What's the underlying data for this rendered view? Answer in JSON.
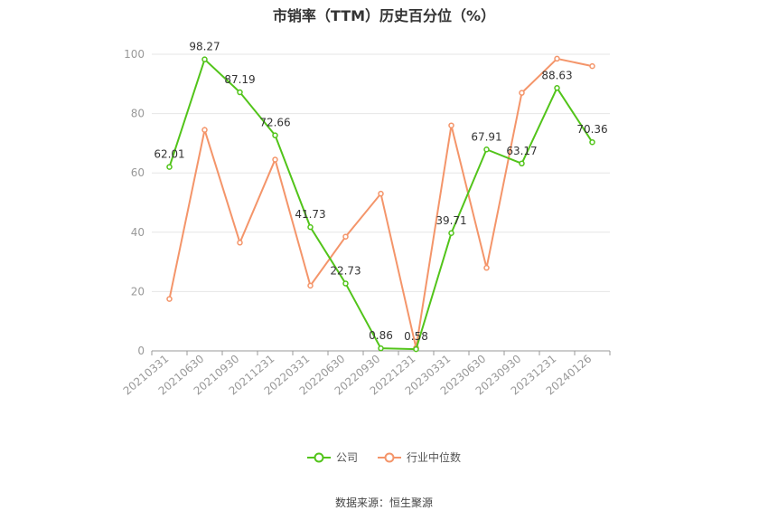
{
  "chart_data": {
    "type": "line",
    "title": "市销率（TTM）历史百分位（%）",
    "categories": [
      "20210331",
      "20210630",
      "20210930",
      "20211231",
      "20220331",
      "20220630",
      "20220930",
      "20221231",
      "20230331",
      "20230630",
      "20230930",
      "20231231",
      "20240126"
    ],
    "ylim": [
      0,
      100
    ],
    "yticks": [
      0,
      20,
      40,
      60,
      80,
      100
    ],
    "grid": true,
    "legend_position": "bottom",
    "series": [
      {
        "name": "公司",
        "color": "#52c41a",
        "values": [
          62.01,
          98.27,
          87.19,
          72.66,
          41.73,
          22.73,
          0.86,
          0.58,
          39.71,
          67.91,
          63.17,
          88.63,
          70.36
        ],
        "labels": [
          "62.01",
          "98.27",
          "87.19",
          "72.66",
          "41.73",
          "22.73",
          "0.86",
          "0.58",
          "39.71",
          "67.91",
          "63.17",
          "88.63",
          "70.36"
        ]
      },
      {
        "name": "行业中位数",
        "color": "#f4956a",
        "values": [
          17.5,
          74.5,
          36.5,
          64.5,
          22.0,
          38.5,
          53.0,
          1.0,
          76.0,
          28.0,
          87.0,
          98.5,
          96.0
        ]
      }
    ]
  },
  "source": "数据来源：恒生聚源"
}
